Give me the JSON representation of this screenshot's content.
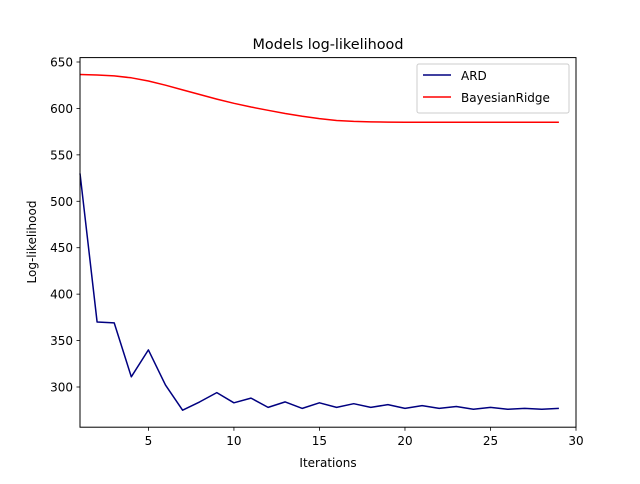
{
  "chart_data": {
    "type": "line",
    "title": "Models log-likelihood",
    "xlabel": "Iterations",
    "ylabel": "Log-likelihood",
    "xlim": [
      1,
      30
    ],
    "ylim": [
      427,
      655
    ],
    "xticks": [
      5,
      10,
      15,
      20,
      25,
      30
    ],
    "yticks": [
      300,
      350,
      400,
      450,
      500,
      550,
      600,
      650
    ],
    "grid": false,
    "legend_position": "upper right",
    "x": [
      1,
      2,
      3,
      4,
      5,
      6,
      7,
      8,
      9,
      10,
      11,
      12,
      13,
      14,
      15,
      16,
      17,
      18,
      19,
      20,
      21,
      22,
      23,
      24,
      25,
      26,
      27,
      28,
      29
    ],
    "series": [
      {
        "name": "ARD",
        "color": "#000080",
        "values": [
          530,
          370,
          369,
          311,
          340,
          302,
          275,
          284,
          294,
          283,
          288,
          278,
          284,
          277,
          283,
          278,
          282,
          278,
          281,
          277,
          280,
          277,
          279,
          276,
          278,
          276,
          277,
          276,
          277
        ]
      },
      {
        "name": "BayesianRidge",
        "color": "#ff0000",
        "values": [
          636.5,
          636,
          635,
          633,
          629.5,
          625,
          620,
          615,
          610,
          605.5,
          601.5,
          598,
          594.5,
          591.5,
          589,
          587,
          586,
          585.5,
          585.3,
          585.2,
          585.2,
          585.2,
          585.2,
          585.2,
          585.2,
          585.2,
          585.2,
          585.2,
          585.2
        ]
      }
    ]
  }
}
